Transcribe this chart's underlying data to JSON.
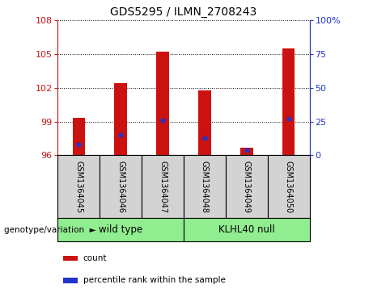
{
  "title": "GDS5295 / ILMN_2708243",
  "samples": [
    "GSM1364045",
    "GSM1364046",
    "GSM1364047",
    "GSM1364048",
    "GSM1364049",
    "GSM1364050"
  ],
  "red_values": [
    99.3,
    102.4,
    105.2,
    101.8,
    96.7,
    105.5
  ],
  "blue_percentiles": [
    8,
    15,
    26,
    13,
    4,
    27
  ],
  "base": 96,
  "ylim_left": [
    96,
    108
  ],
  "ylim_right": [
    0,
    100
  ],
  "yticks_left": [
    96,
    99,
    102,
    105,
    108
  ],
  "yticks_right": [
    0,
    25,
    50,
    75,
    100
  ],
  "ytick_labels_right": [
    "0",
    "25",
    "50",
    "75",
    "100%"
  ],
  "bar_color": "#cc1111",
  "dot_color": "#2233cc",
  "bar_width": 0.3,
  "groups": [
    {
      "label": "wild type",
      "samples": [
        0,
        1,
        2
      ],
      "color": "#90ee90"
    },
    {
      "label": "KLHL40 null",
      "samples": [
        3,
        4,
        5
      ],
      "color": "#90ee90"
    }
  ],
  "group_label_prefix": "genotype/variation",
  "legend_items": [
    {
      "color": "#cc1111",
      "label": "count"
    },
    {
      "color": "#2233cc",
      "label": "percentile rank within the sample"
    }
  ],
  "tick_color_left": "#cc1111",
  "tick_color_right": "#2233cc"
}
